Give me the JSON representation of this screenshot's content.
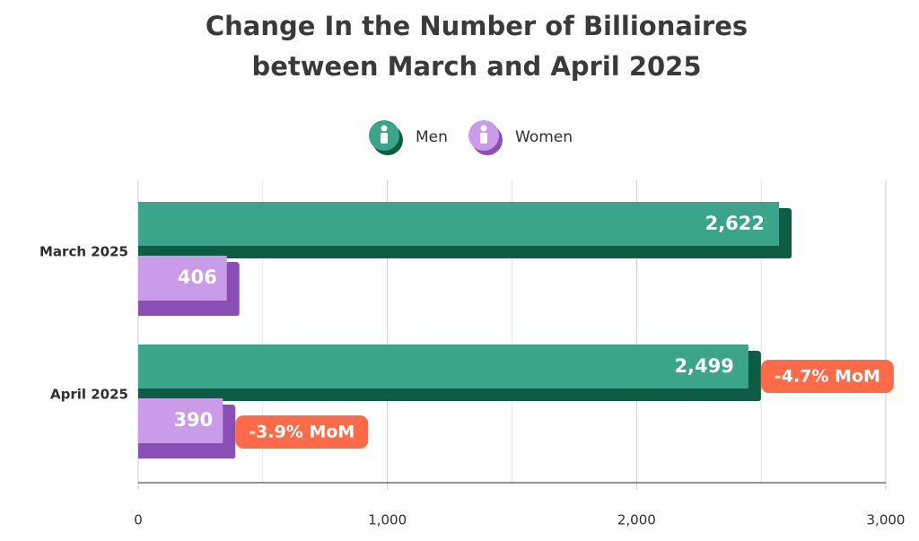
{
  "chart_data": {
    "type": "bar",
    "orientation": "horizontal",
    "title": [
      "Change In the Number of Billionaires",
      "between March and April 2025"
    ],
    "categories": [
      "March 2025",
      "April 2025"
    ],
    "series": [
      {
        "name": "Men",
        "color": "#3aa58a",
        "shadow_color": "#0f5c44",
        "values": [
          2622,
          2499
        ],
        "value_labels": [
          "2,622",
          "2,499"
        ],
        "change_labels": [
          null,
          "-4.7% MoM"
        ]
      },
      {
        "name": "Women",
        "color": "#c99be8",
        "shadow_color": "#8a4fb5",
        "values": [
          406,
          390
        ],
        "value_labels": [
          "406",
          "390"
        ],
        "change_labels": [
          null,
          "-3.9% MoM"
        ]
      }
    ],
    "xlim": [
      0,
      3000
    ],
    "xticks": [
      0,
      {
        "value": 1000,
        "label": "1,000"
      },
      {
        "value": 2000,
        "label": "2,000"
      },
      {
        "value": 3000,
        "label": "3,000"
      }
    ],
    "minor_xticks": [
      500,
      1500,
      2500
    ],
    "grid": true,
    "legend": "top",
    "annotation_color": "#ff6b47"
  }
}
